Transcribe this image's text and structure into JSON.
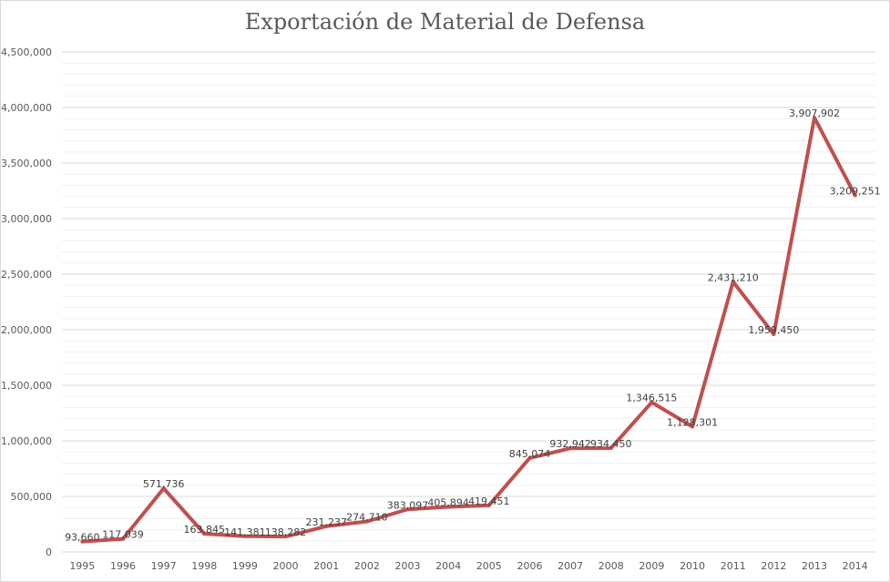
{
  "chart_data": {
    "type": "line",
    "title": "Exportación de Material de Defensa",
    "xlabel": "",
    "ylabel": "",
    "categories": [
      "1995",
      "1996",
      "1997",
      "1998",
      "1999",
      "2000",
      "2001",
      "2002",
      "2003",
      "2004",
      "2005",
      "2006",
      "2007",
      "2008",
      "2009",
      "2010",
      "2011",
      "2012",
      "2013",
      "2014"
    ],
    "values": [
      93660,
      117039,
      571736,
      163845,
      141381,
      138282,
      231237,
      274710,
      383097,
      405894,
      419451,
      845074,
      932942,
      934450,
      1346515,
      1128301,
      2431210,
      1959450,
      3907902,
      3209251
    ],
    "data_labels": [
      "93,660",
      "117,039",
      "571,736",
      "163,845",
      "141,381",
      "138,282",
      "231,237",
      "274,710",
      "383,097",
      "405,894",
      "419,451",
      "845,074",
      "932,942",
      "934,450",
      "1,346,515",
      "1,128,301",
      "2,431,210",
      "1,959,450",
      "3,907,902",
      "3,209,251"
    ],
    "ylim": [
      0,
      4500000
    ],
    "y_ticks": [
      "0",
      "500,000",
      "1,000,000",
      "1,500,000",
      "2,000,000",
      "2,500,000",
      "3,000,000",
      "3,500,000",
      "4,000,000",
      "4,500,000"
    ],
    "grid": true,
    "minor_grid": true,
    "legend": "none",
    "line_color": "#c0504d"
  }
}
